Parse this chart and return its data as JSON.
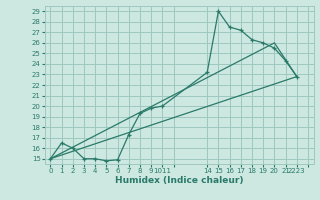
{
  "xlabel": "Humidex (Indice chaleur)",
  "bg_color": "#cce8e0",
  "grid_color": "#9ec8c0",
  "line_color": "#2a7a6a",
  "series1_x": [
    0,
    1,
    2,
    3,
    4,
    5,
    6,
    7,
    8,
    9,
    10,
    14,
    15,
    16,
    17,
    18,
    19,
    20,
    21,
    22
  ],
  "series1_y": [
    15.0,
    16.5,
    16.0,
    15.0,
    15.0,
    14.8,
    14.9,
    17.3,
    19.3,
    19.8,
    20.0,
    23.2,
    29.0,
    27.5,
    27.2,
    26.3,
    26.0,
    25.5,
    24.3,
    22.8
  ],
  "series2_x": [
    0,
    22
  ],
  "series2_y": [
    15.0,
    22.8
  ],
  "series3_x": [
    0,
    20,
    22
  ],
  "series3_y": [
    15.0,
    26.0,
    22.8
  ],
  "ylim": [
    15,
    29
  ],
  "yticks": [
    15,
    16,
    17,
    18,
    19,
    20,
    21,
    22,
    23,
    24,
    25,
    26,
    27,
    28,
    29
  ],
  "xtick_vals": [
    0,
    1,
    2,
    3,
    4,
    5,
    6,
    7,
    8,
    9,
    10,
    11,
    14,
    15,
    16,
    17,
    18,
    19,
    20,
    21,
    22,
    23
  ],
  "xtick_labels": [
    "0",
    "1",
    "2",
    "3",
    "4",
    "5",
    "6",
    "7",
    "8",
    "9",
    "1011",
    "",
    "14",
    "15",
    "16",
    "17",
    "18",
    "19",
    "20",
    "21",
    "2223",
    ""
  ],
  "xlim": [
    -0.5,
    23.5
  ]
}
